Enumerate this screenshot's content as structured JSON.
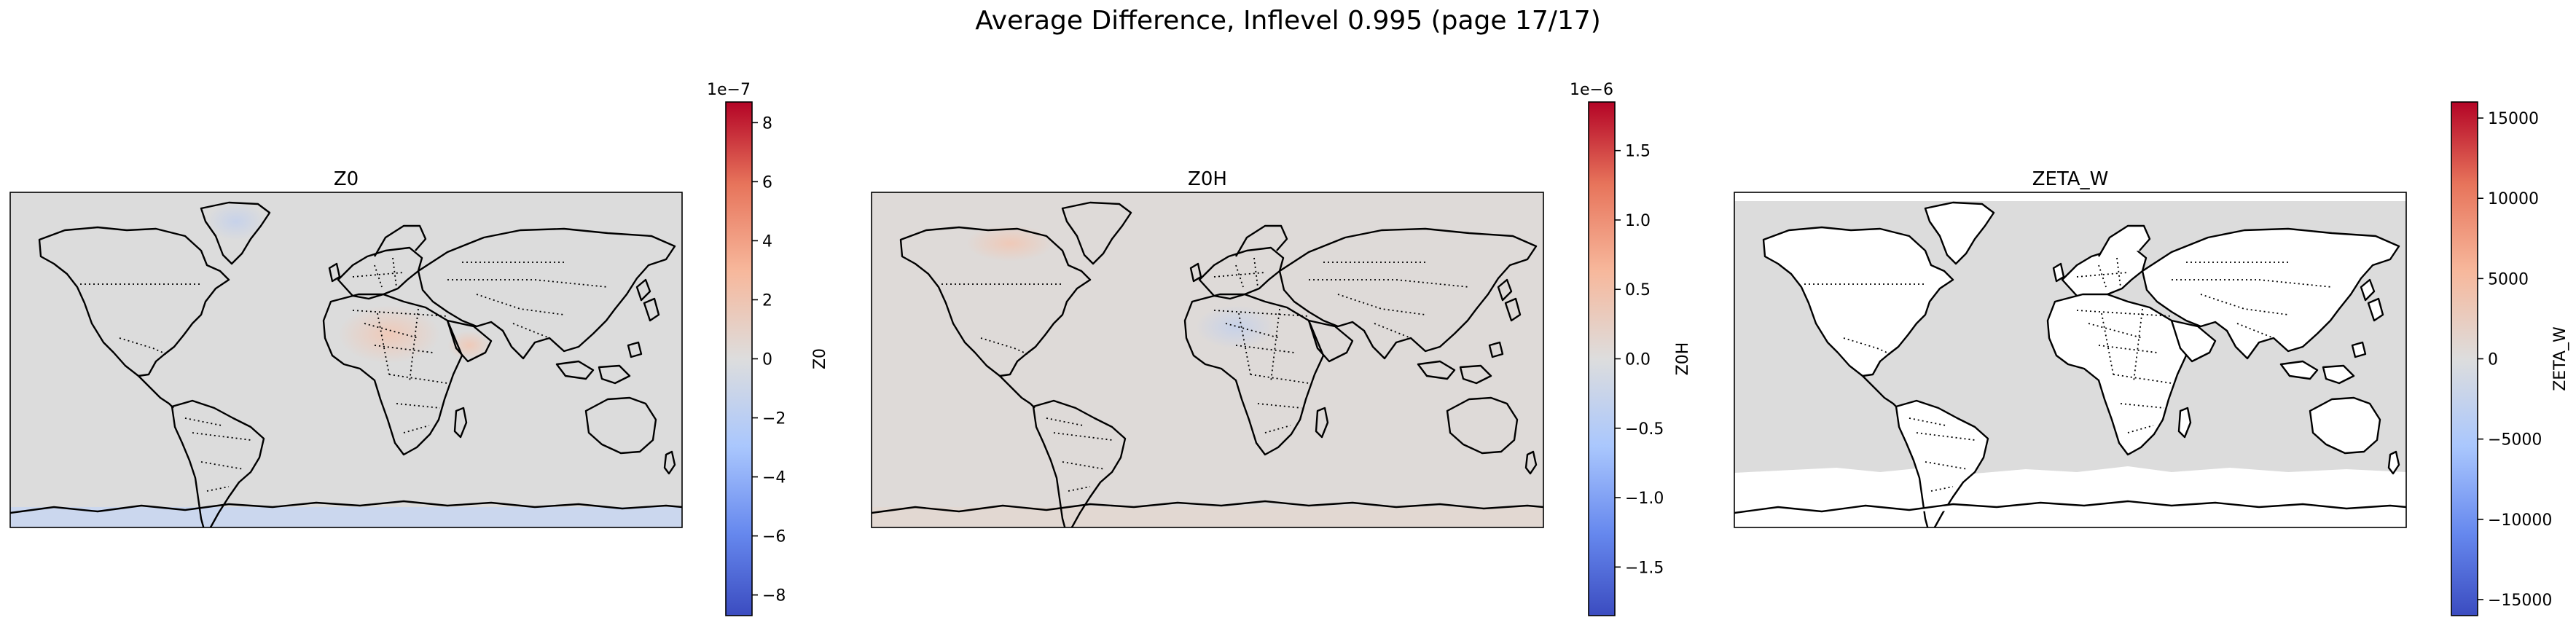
{
  "figure": {
    "title": "Average Difference, Inflevel 0.995 (page 17/17)"
  },
  "colors": {
    "cmap": [
      "#3b4cc0",
      "#6688ee",
      "#aac7fd",
      "#dddddd",
      "#f7b89c",
      "#e7745b",
      "#b40426"
    ],
    "neutral": "#dcdcdc",
    "coast": "#000000"
  },
  "chart_data": [
    {
      "type": "heatmap",
      "title": "Z0",
      "colorbar_label": "Z0",
      "colorbar_ticks": [
        "8",
        "6",
        "4",
        "2",
        "0",
        "−2",
        "−4",
        "−6",
        "−8"
      ],
      "colorbar_tick_values": [
        8,
        6,
        4,
        2,
        0,
        -2,
        -4,
        -6,
        -8
      ],
      "offset_text": "1e−7",
      "vmin": -8.7,
      "vmax": 8.7,
      "field_fill": "#dcdcdc",
      "southern_band": "#cbd7ee",
      "description_colors": "mostly near-zero with faint warm patches over North Africa/Arabia and faint blue over Greenland/Antarctica"
    },
    {
      "type": "heatmap",
      "title": "Z0H",
      "colorbar_label": "Z0H",
      "colorbar_ticks": [
        "1.5",
        "1.0",
        "0.5",
        "0.0",
        "−0.5",
        "−1.0",
        "−1.5"
      ],
      "colorbar_tick_values": [
        1.5,
        1.0,
        0.5,
        0.0,
        -0.5,
        -1.0,
        -1.5
      ],
      "offset_text": "1e−6",
      "vmin": -1.85,
      "vmax": 1.85,
      "field_fill": "#dedad8",
      "southern_band": "#e2d8d2",
      "description_colors": "near-zero everywhere with faint bluish patches over North Africa"
    },
    {
      "type": "heatmap",
      "title": "ZETA_W",
      "colorbar_label": "ZETA_W",
      "colorbar_ticks": [
        "15000",
        "10000",
        "5000",
        "0",
        "−5000",
        "−10000",
        "−15000"
      ],
      "colorbar_tick_values": [
        15000,
        10000,
        5000,
        0,
        -5000,
        -10000,
        -15000
      ],
      "offset_text": "",
      "vmin": -16000,
      "vmax": 16000,
      "field_fill": "#dcdcdc",
      "southern_band": "#ffffff",
      "description_colors": "zero over ocean, land masked white"
    }
  ]
}
